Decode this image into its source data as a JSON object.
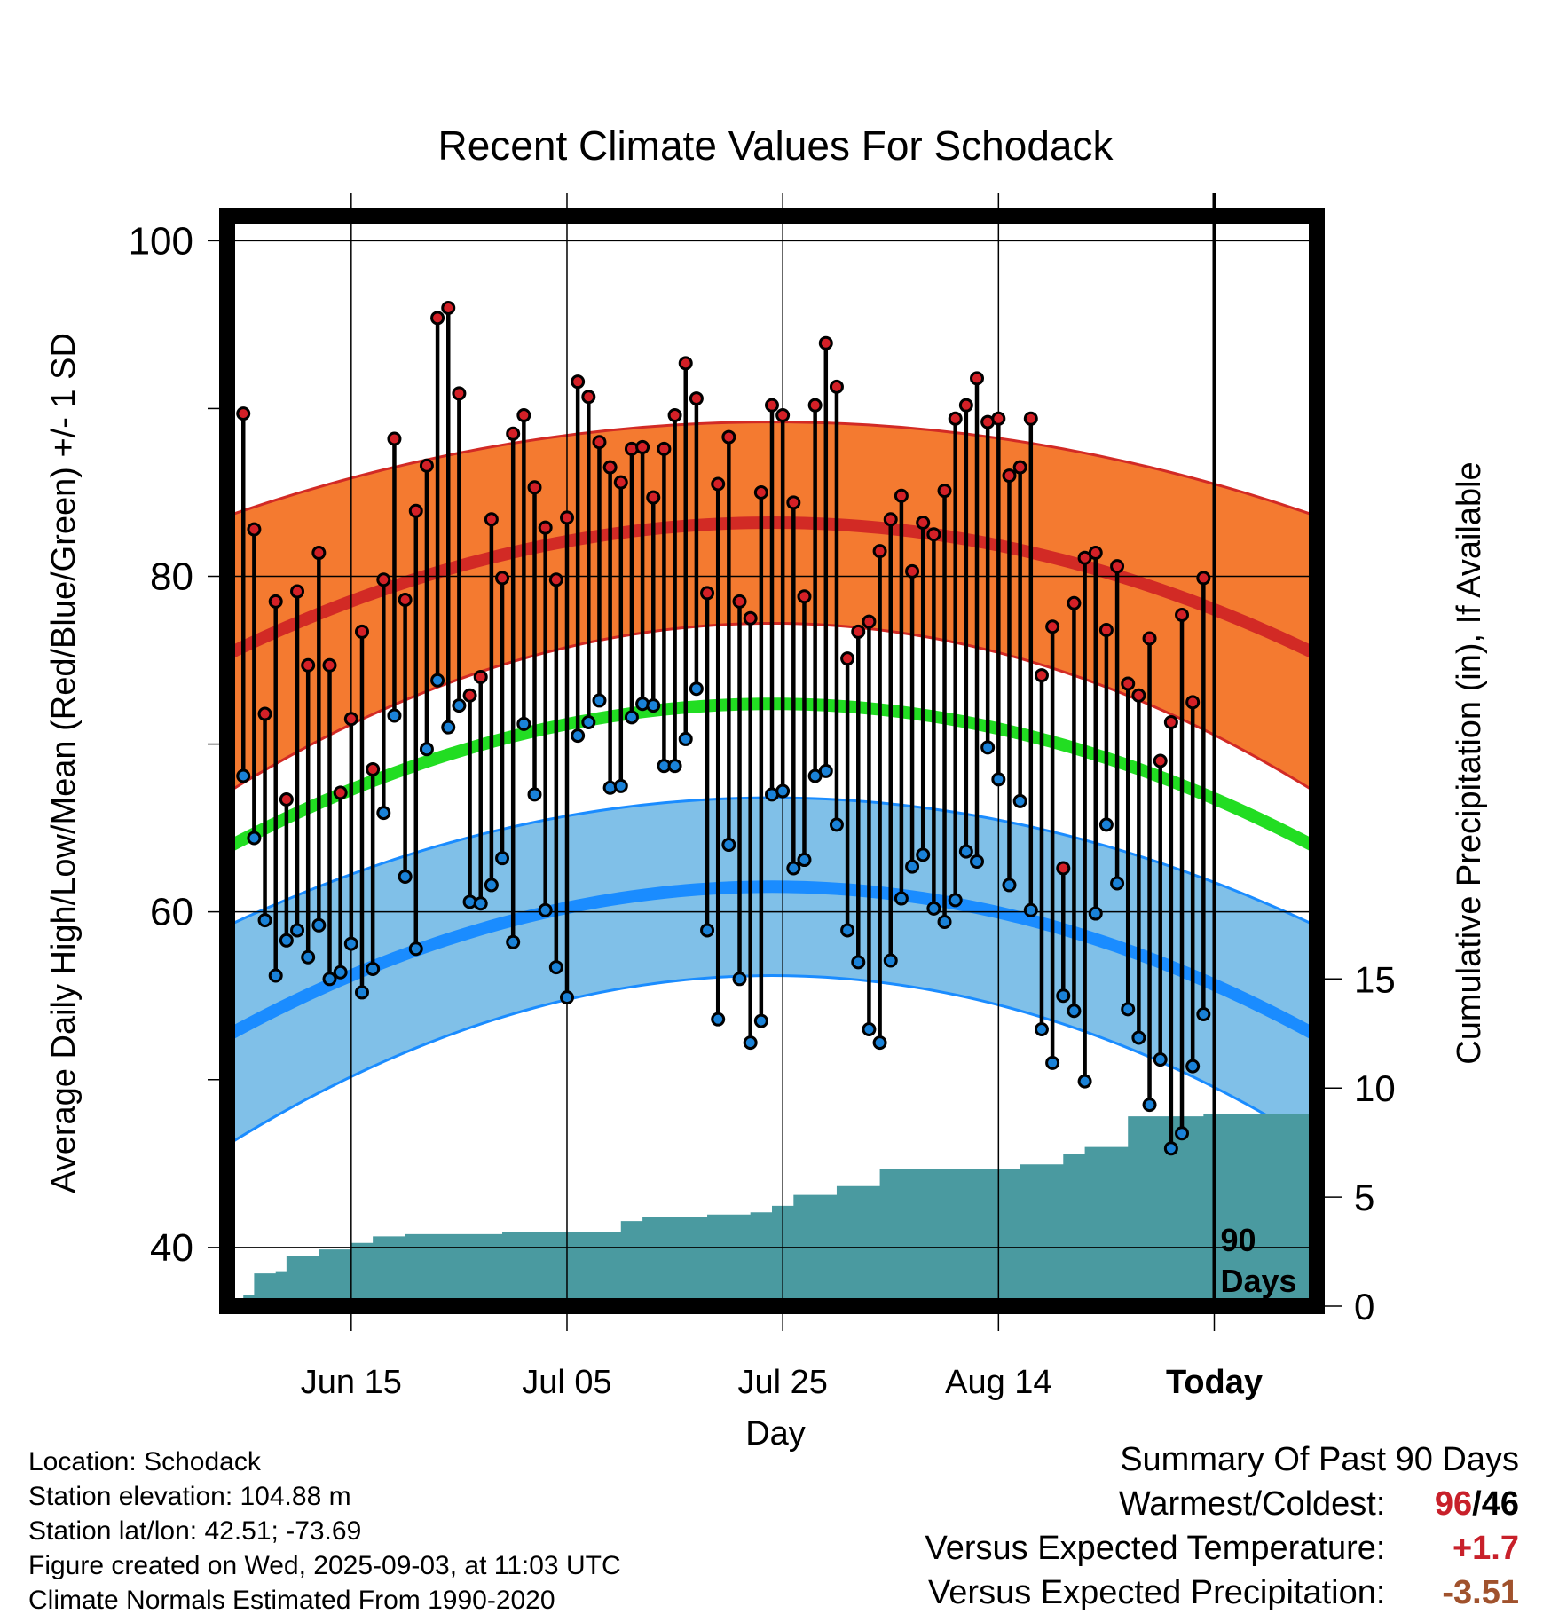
{
  "title": "Recent Climate Values For Schodack",
  "chart_data": {
    "type": "line",
    "title": "Recent Climate Values For Schodack",
    "xlabel": "Day",
    "ylabel": "Average Daily High/Low/Mean (Red/Blue/Green) +/- 1 SD",
    "ylabel_right": "Cumulative Precipitation (in), If Available",
    "ylim": [
      36.5,
      101.5
    ],
    "y_ticks": [
      100,
      80,
      60,
      40
    ],
    "y_right_ticks": [
      15,
      10,
      5,
      0
    ],
    "y_right_lim": [
      0,
      50
    ],
    "x_tick_labels": [
      "Jun 15",
      "Jul 05",
      "Jul 25",
      "Aug 14",
      "Today"
    ],
    "x_tick_day_index": [
      11,
      31,
      51,
      71,
      91
    ],
    "day_range": [
      -0.5,
      100.5
    ],
    "today_marker_label": "90 Days",
    "normals": {
      "high_mean": {
        "start": 75.5,
        "peak": 83.2,
        "end": 75.5
      },
      "high_sd": {
        "start": 8.2,
        "peak": 6.0,
        "end": 6.5
      },
      "low_mean": {
        "start": 52.8,
        "peak": 61.5,
        "end": 52.8
      },
      "low_sd": {
        "start": 6.5,
        "peak": 5.3,
        "end": 6.5
      },
      "mean_mean": {
        "start": 64.0,
        "peak": 72.4,
        "end": 64.0
      }
    },
    "series": [
      {
        "name": "High",
        "values": [
          89.7,
          82.8,
          71.8,
          78.5,
          66.7,
          79.1,
          74.7,
          81.4,
          74.7,
          67.1,
          71.5,
          76.7,
          68.5,
          79.8,
          88.2,
          78.6,
          83.9,
          86.6,
          95.4,
          96.0,
          90.9,
          72.9,
          74.0,
          83.4,
          79.9,
          88.5,
          89.6,
          85.3,
          82.9,
          79.8,
          83.5,
          91.6,
          90.7,
          88.0,
          86.5,
          85.6,
          87.6,
          87.7,
          84.7,
          87.6,
          89.6,
          92.7,
          90.6,
          79.0,
          85.5,
          88.3,
          78.5,
          77.5,
          85.0,
          90.2,
          89.6,
          84.4,
          78.8,
          90.2,
          93.9,
          91.3,
          75.1,
          76.7,
          77.3,
          81.5,
          83.4,
          84.8,
          80.3,
          83.2,
          82.5,
          85.1,
          89.4,
          90.2,
          91.8,
          89.2,
          89.4,
          86.0,
          86.5,
          89.4,
          74.1,
          77.0,
          62.6,
          78.4,
          81.1,
          81.4,
          76.8,
          80.6,
          73.6,
          72.9,
          76.3,
          69.0,
          71.3,
          77.7,
          72.5,
          79.9
        ]
      },
      {
        "name": "Low",
        "values": [
          68.1,
          64.4,
          59.5,
          56.2,
          58.3,
          58.9,
          57.3,
          59.2,
          56.0,
          56.4,
          58.1,
          55.2,
          56.6,
          65.9,
          71.7,
          62.1,
          57.8,
          69.7,
          73.8,
          71.0,
          72.3,
          60.6,
          60.5,
          61.6,
          63.2,
          58.2,
          71.2,
          67.0,
          60.1,
          56.7,
          54.9,
          70.5,
          71.3,
          72.6,
          67.4,
          67.5,
          71.6,
          72.4,
          72.3,
          68.7,
          68.7,
          70.3,
          73.3,
          58.9,
          53.6,
          64.0,
          56.0,
          52.2,
          53.5,
          67.0,
          67.2,
          62.6,
          63.1,
          68.1,
          68.4,
          65.2,
          58.9,
          57.0,
          53.0,
          52.2,
          57.1,
          60.8,
          62.7,
          63.4,
          60.2,
          59.4,
          60.7,
          63.6,
          63.0,
          69.8,
          67.9,
          61.6,
          66.6,
          60.1,
          53.0,
          51.0,
          55.0,
          54.1,
          49.9,
          59.9,
          65.2,
          61.7,
          54.2,
          52.5,
          48.5,
          51.2,
          45.9,
          46.8,
          50.8,
          53.9
        ]
      },
      {
        "name": "Cumulative Precipitation",
        "values": [
          0,
          0.35,
          1.0,
          1.55,
          1.65,
          1.75,
          1.8,
          2.15,
          2.3,
          2.5,
          2.55,
          2.6,
          2.65,
          2.75,
          2.8,
          2.85,
          2.9,
          2.95,
          3.0,
          3.05,
          3.1,
          3.15,
          3.2,
          3.25,
          3.3,
          3.35,
          3.4,
          3.45,
          3.5,
          3.55,
          3.6,
          3.9,
          4.1,
          4.2,
          4.4,
          4.5,
          4.6,
          4.7,
          4.9,
          5.0,
          5.2,
          5.4,
          5.6,
          5.8,
          5.9,
          6.0,
          6.1,
          6.2,
          6.3,
          6.5,
          6.6,
          6.7,
          6.8,
          6.9,
          7.0,
          7.1,
          7.2,
          7.3,
          7.4,
          7.5,
          7.55,
          7.6,
          7.65,
          7.7,
          7.75,
          7.8,
          7.85,
          7.9,
          7.95,
          8.0,
          8.05,
          8.1,
          8.15,
          8.2,
          8.25,
          8.3,
          8.35,
          8.4,
          8.45,
          8.5,
          8.55,
          8.6,
          8.65,
          8.7,
          8.72,
          8.74,
          8.76,
          8.78,
          8.8,
          8.8
        ],
        "precip_step_levels": [
          [
            0,
            0
          ],
          [
            1,
            0.5
          ],
          [
            2,
            1.5
          ],
          [
            4,
            1.6
          ],
          [
            5,
            2.3
          ],
          [
            8,
            2.6
          ],
          [
            11,
            2.9
          ],
          [
            13,
            3.2
          ],
          [
            16,
            3.3
          ],
          [
            22,
            3.3
          ],
          [
            25,
            3.4
          ],
          [
            30,
            3.4
          ],
          [
            35,
            3.4
          ],
          [
            36,
            3.9
          ],
          [
            38,
            4.1
          ],
          [
            44,
            4.2
          ],
          [
            48,
            4.3
          ],
          [
            50,
            4.6
          ],
          [
            52,
            5.1
          ],
          [
            56,
            5.5
          ],
          [
            60,
            6.3
          ],
          [
            68,
            6.3
          ],
          [
            73,
            6.5
          ],
          [
            77,
            7.0
          ],
          [
            79,
            7.3
          ],
          [
            83,
            8.7
          ],
          [
            90,
            8.8
          ]
        ]
      }
    ]
  },
  "info": {
    "location": "Location: Schodack",
    "elevation": "Station elevation: 104.88 m",
    "latlon": "Station lat/lon: 42.51; -73.69",
    "created": "Figure created on Wed, 2025-09-03, at 11:03 UTC",
    "normals": "Climate Normals Estimated From 1990-2020"
  },
  "summary": {
    "heading": "Summary Of Past 90 Days",
    "warmest_coldest_label": "Warmest/Coldest:",
    "warmest": "96",
    "slash": "/",
    "coldest": "46",
    "temp_label": "Versus Expected Temperature:",
    "temp_value": "+1.7",
    "precip_label": "Versus Expected Precipitation:",
    "precip_value": "-3.51",
    "colors": {
      "warm": "#c8202a",
      "cold": "#000000",
      "temp_value": "#c8202a",
      "precip_value": "#a0522d"
    }
  },
  "colors": {
    "high_band": "#f47a30",
    "high_line": "#d22a25",
    "low_band": "#80c0e8",
    "low_line": "#1a8cff",
    "mean_line": "#22dd22",
    "precip": "#4a9aa0",
    "high_dot": "#d42027",
    "low_dot": "#1a82d8"
  }
}
